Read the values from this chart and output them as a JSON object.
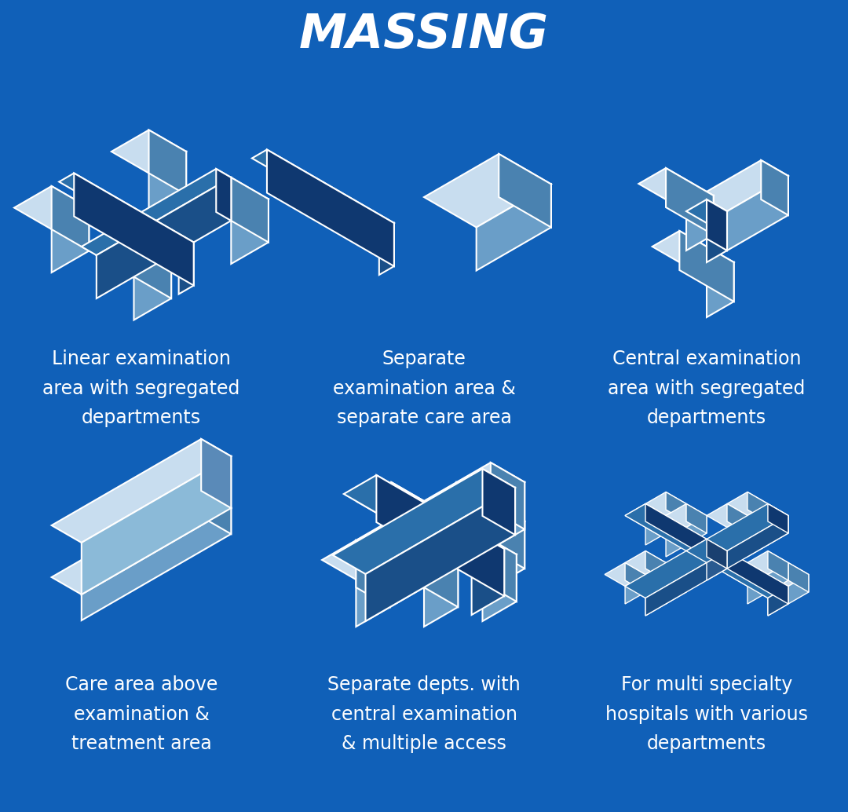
{
  "background_color": "#1060B8",
  "title": "MASSING",
  "title_color": "#FFFFFF",
  "title_fontsize": 44,
  "title_fontstyle": "italic",
  "title_fontweight": "bold",
  "label_color": "#FFFFFF",
  "label_fontsize": 17,
  "labels": [
    "Linear examination\narea with segregated\ndepartments",
    "Separate\nexamination area &\nseparate care area",
    "Central examination\narea with segregated\ndepartments",
    "Care area above\nexamination &\ntreatment area",
    "Separate depts. with\ncentral examination\n& multiple access",
    "For multi specialty\nhospitals with various\ndepartments"
  ],
  "col_light": "#AECDE8",
  "col_lighter": "#C8DDEF",
  "col_mid": "#6A9EC8",
  "col_dark": "#2A6FAA",
  "col_darker": "#1A4F88",
  "col_darkest": "#0F3870",
  "col_white": "#FFFFFF",
  "col_side_l": "#8BBAD8",
  "col_side_r": "#4A82B0"
}
